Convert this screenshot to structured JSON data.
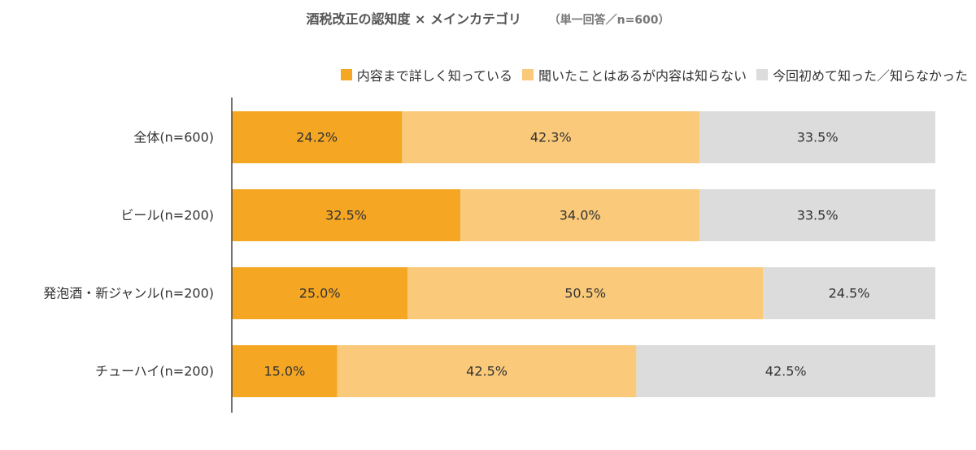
{
  "chart_data": {
    "type": "bar",
    "orientation": "horizontal",
    "stacked": true,
    "title": "酒税改正の認知度 × メインカテゴリ",
    "subtitle": "（単一回答／n=600）",
    "categories": [
      "全体(n=600)",
      "ビール(n=200)",
      "発泡酒・新ジャンル(n=200)",
      "チューハイ(n=200)"
    ],
    "series": [
      {
        "name": "内容まで詳しく知っている",
        "color": "#f5a623",
        "values": [
          24.2,
          32.5,
          25.0,
          15.0
        ],
        "labels": [
          "24.2%",
          "32.5%",
          "25.0%",
          "15.0%"
        ]
      },
      {
        "name": "聞いたことはあるが内容は知らない",
        "color": "#fac97a",
        "values": [
          42.3,
          34.0,
          50.5,
          42.5
        ],
        "labels": [
          "42.3%",
          "34.0%",
          "50.5%",
          "42.5%"
        ]
      },
      {
        "name": "今回初めて知った／知らなかった",
        "color": "#dcdcdc",
        "values": [
          33.5,
          33.5,
          24.5,
          42.5
        ],
        "labels": [
          "33.5%",
          "33.5%",
          "24.5%",
          "42.5%"
        ]
      }
    ],
    "xlim": [
      0,
      100
    ],
    "grid": false,
    "legend_position": "top-right"
  }
}
